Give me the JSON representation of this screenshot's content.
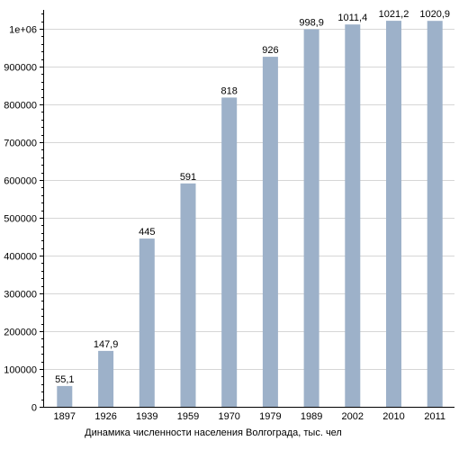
{
  "chart_data": {
    "type": "bar",
    "title": "",
    "xlabel": "Динамика численности населения Волгограда, тыс. чел",
    "ylabel": "",
    "categories": [
      "1897",
      "1926",
      "1939",
      "1959",
      "1970",
      "1979",
      "1989",
      "2002",
      "2010",
      "2011"
    ],
    "values": [
      55100,
      147900,
      445000,
      591000,
      818000,
      926000,
      998900,
      1011400,
      1021200,
      1020900
    ],
    "value_labels": [
      "55,1",
      "147,9",
      "445",
      "591",
      "818",
      "926",
      "998,9",
      "1011,4",
      "1021,2",
      "1020,9"
    ],
    "ylim": [
      0,
      1050000
    ],
    "yticks": [
      0,
      100000,
      200000,
      300000,
      400000,
      500000,
      600000,
      700000,
      800000,
      900000,
      1000000
    ],
    "ytick_labels": [
      "0",
      "100000",
      "200000",
      "300000",
      "400000",
      "500000",
      "600000",
      "700000",
      "800000",
      "900000",
      "1e+06"
    ],
    "grid": true,
    "legend": "none",
    "bar_color": "#9db1c9",
    "grid_color": "#d6d6d6"
  }
}
